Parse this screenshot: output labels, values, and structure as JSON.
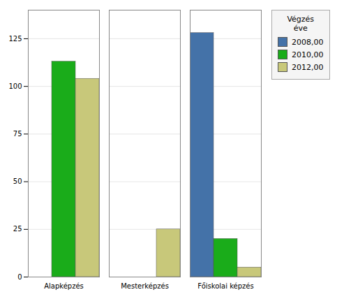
{
  "chart_data": {
    "type": "bar",
    "categories": [
      "Alapképzés",
      "Mesterképzés",
      "Főiskolai képzés"
    ],
    "series": [
      {
        "name": "2008,00",
        "color": "#4472a8",
        "values": [
          0,
          0,
          128
        ]
      },
      {
        "name": "2010,00",
        "color": "#1aac1a",
        "values": [
          113,
          0,
          20
        ]
      },
      {
        "name": "2012,00",
        "color": "#c8c87a",
        "values": [
          104,
          25,
          5
        ]
      }
    ],
    "legend_title": "Végzés\néve",
    "legend": "right",
    "ylim": [
      0,
      140
    ],
    "yticks": [
      0,
      25,
      50,
      75,
      100,
      125
    ],
    "grid": true
  }
}
